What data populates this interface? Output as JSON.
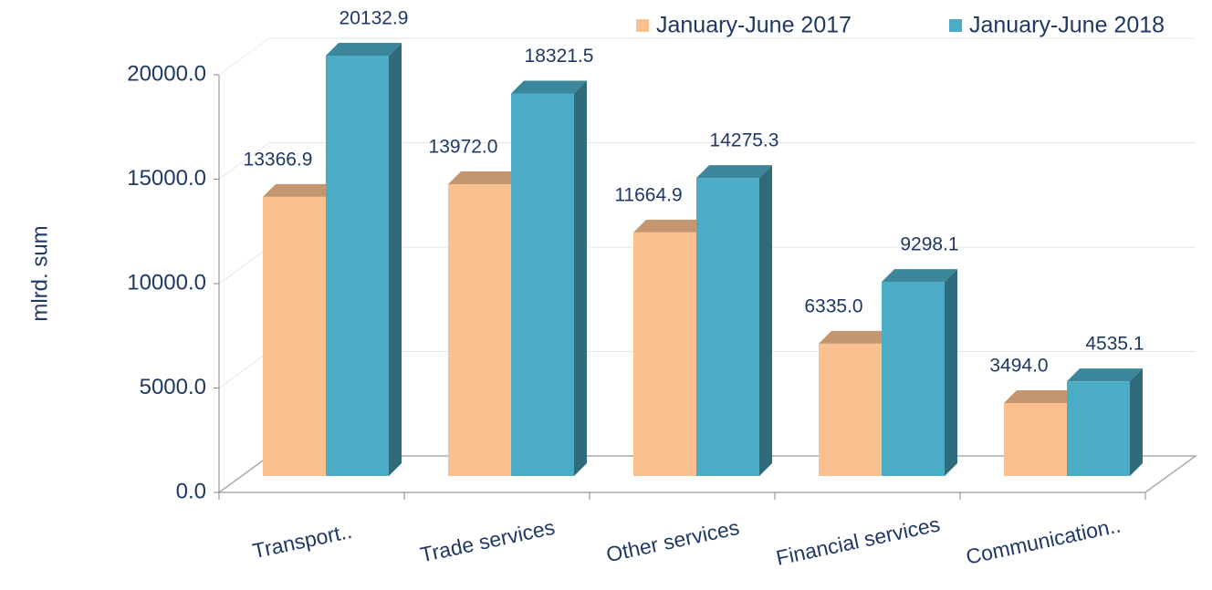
{
  "chart_data": {
    "type": "bar3d",
    "y_label": "mlrd. sum",
    "categories": [
      "Transport..",
      "Trade services",
      "Other services",
      "Financial services",
      "Communication.."
    ],
    "series": [
      {
        "name": "January-June 2017",
        "color": "#fac090",
        "values": [
          13366.9,
          13972.0,
          11664.9,
          6335.0,
          3494.0
        ],
        "value_labels": [
          "13366.9",
          "13972.0",
          "11664.9",
          "6335.0",
          "3494.0"
        ]
      },
      {
        "name": "January-June 2018",
        "color": "#4bacc6",
        "values": [
          20132.9,
          18321.5,
          14275.3,
          9298.1,
          4535.1
        ],
        "value_labels": [
          "20132.9",
          "18321.5",
          "14275.3",
          "9298.1",
          "4535.1"
        ]
      }
    ],
    "ylim": [
      0,
      20000
    ],
    "yticks": [
      {
        "value": 0,
        "label": "0.0"
      },
      {
        "value": 5000,
        "label": "5000.0"
      },
      {
        "value": 10000,
        "label": "10000.0"
      },
      {
        "value": 15000,
        "label": "15000.0"
      },
      {
        "value": 20000,
        "label": "20000.0"
      }
    ],
    "grid": true,
    "legend": "top-right"
  }
}
